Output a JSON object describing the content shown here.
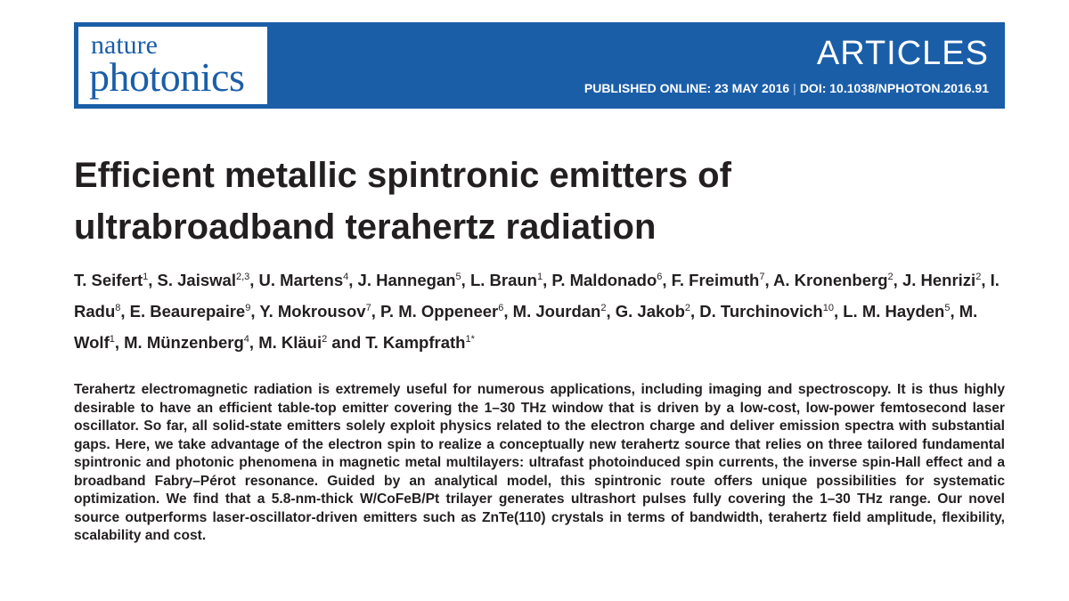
{
  "header": {
    "journal_line1": "nature",
    "journal_line2": "photonics",
    "section": "ARTICLES",
    "published": "PUBLISHED ONLINE: 23 MAY 2016",
    "separator": "|",
    "doi": "DOI: 10.1038/NPHOTON.2016.91"
  },
  "title": "Efficient metallic spintronic emitters of ultrabroadband terahertz radiation",
  "authors": [
    {
      "name": "T. Seifert",
      "sup": "1"
    },
    {
      "name": "S. Jaiswal",
      "sup": "2,3"
    },
    {
      "name": "U. Martens",
      "sup": "4"
    },
    {
      "name": "J. Hannegan",
      "sup": "5"
    },
    {
      "name": "L. Braun",
      "sup": "1"
    },
    {
      "name": "P. Maldonado",
      "sup": "6"
    },
    {
      "name": "F. Freimuth",
      "sup": "7"
    },
    {
      "name": "A. Kronenberg",
      "sup": "2"
    },
    {
      "name": "J. Henrizi",
      "sup": "2"
    },
    {
      "name": "I. Radu",
      "sup": "8"
    },
    {
      "name": "E. Beaurepaire",
      "sup": "9"
    },
    {
      "name": "Y. Mokrousov",
      "sup": "7"
    },
    {
      "name": "P. M. Oppeneer",
      "sup": "6"
    },
    {
      "name": "M. Jourdan",
      "sup": "2"
    },
    {
      "name": "G. Jakob",
      "sup": "2"
    },
    {
      "name": "D. Turchinovich",
      "sup": "10"
    },
    {
      "name": "L. M. Hayden",
      "sup": "5"
    },
    {
      "name": "M. Wolf",
      "sup": "1"
    },
    {
      "name": "M. Münzenberg",
      "sup": "4"
    },
    {
      "name": "M. Kläui",
      "sup": "2"
    },
    {
      "name": "T. Kampfrath",
      "sup": "1*"
    }
  ],
  "conjunction": "and",
  "abstract": "Terahertz electromagnetic radiation is extremely useful for numerous applications, including imaging and spectroscopy. It is thus highly desirable to have an efficient table-top emitter covering the 1–30 THz window that is driven by a low-cost, low-power femtosecond laser oscillator. So far, all solid-state emitters solely exploit physics related to the electron charge and deliver emission spectra with substantial gaps. Here, we take advantage of the electron spin to realize a conceptually new terahertz source that relies on three tailored fundamental spintronic and photonic phenomena in magnetic metal multilayers: ultrafast photoinduced spin currents, the inverse spin-Hall effect and a broadband Fabry–Pérot resonance. Guided by an analytical model, this spintronic route offers unique possibilities for systematic optimization. We find that a 5.8-nm-thick W/CoFeB/Pt trilayer generates ultrashort pulses fully covering the 1–30 THz range. Our novel source outperforms laser-oscillator-driven emitters such as ZnTe(110) crystals in terms of bandwidth, terahertz field amplitude, flexibility, scalability and cost."
}
